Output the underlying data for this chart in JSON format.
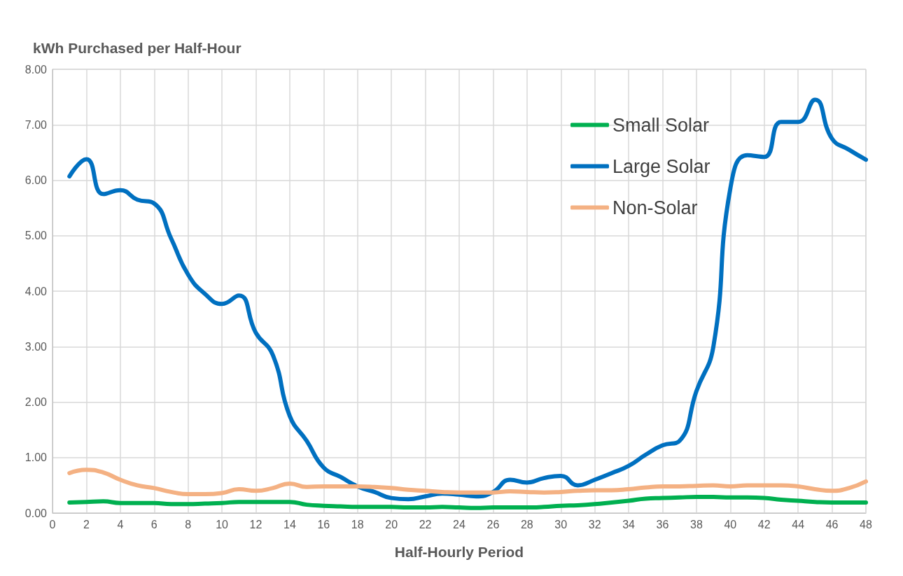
{
  "chart_data": {
    "type": "line",
    "xlabel": "Half-Hourly Period",
    "ylabel": "kWh Purchased per Half-Hour",
    "x": [
      1,
      2,
      3,
      4,
      5,
      6,
      7,
      8,
      9,
      10,
      11,
      12,
      13,
      14,
      15,
      16,
      17,
      18,
      19,
      20,
      21,
      22,
      23,
      24,
      25,
      26,
      27,
      28,
      29,
      30,
      31,
      32,
      33,
      34,
      35,
      36,
      37,
      38,
      39,
      40,
      41,
      42,
      43,
      44,
      45,
      46,
      47,
      48
    ],
    "series": [
      {
        "name": "Small Solar",
        "color": "#00b050",
        "values": [
          0.19,
          0.2,
          0.21,
          0.18,
          0.18,
          0.18,
          0.16,
          0.16,
          0.17,
          0.18,
          0.2,
          0.2,
          0.2,
          0.2,
          0.15,
          0.13,
          0.12,
          0.11,
          0.11,
          0.11,
          0.1,
          0.1,
          0.11,
          0.1,
          0.09,
          0.1,
          0.1,
          0.1,
          0.11,
          0.13,
          0.14,
          0.16,
          0.19,
          0.22,
          0.26,
          0.27,
          0.28,
          0.29,
          0.29,
          0.28,
          0.28,
          0.27,
          0.24,
          0.22,
          0.2,
          0.19,
          0.19,
          0.19
        ]
      },
      {
        "name": "Large Solar",
        "color": "#0070c0",
        "values": [
          6.07,
          6.38,
          5.75,
          5.82,
          5.65,
          5.58,
          4.95,
          4.3,
          3.95,
          3.77,
          3.92,
          3.25,
          2.85,
          1.75,
          1.3,
          0.82,
          0.65,
          0.48,
          0.38,
          0.27,
          0.25,
          0.3,
          0.35,
          0.33,
          0.3,
          0.38,
          0.6,
          0.55,
          0.63,
          0.67,
          0.5,
          0.6,
          0.72,
          0.85,
          1.05,
          1.22,
          1.3,
          2.2,
          3.0,
          5.85,
          6.45,
          6.42,
          7.05,
          7.05,
          7.45,
          6.75,
          6.55,
          6.37
        ]
      },
      {
        "name": "Non-Solar",
        "color": "#f4b183",
        "values": [
          0.72,
          0.78,
          0.73,
          0.6,
          0.5,
          0.45,
          0.38,
          0.34,
          0.34,
          0.36,
          0.43,
          0.4,
          0.45,
          0.53,
          0.47,
          0.48,
          0.48,
          0.48,
          0.47,
          0.45,
          0.42,
          0.4,
          0.38,
          0.37,
          0.37,
          0.37,
          0.39,
          0.38,
          0.37,
          0.38,
          0.4,
          0.41,
          0.41,
          0.43,
          0.46,
          0.48,
          0.48,
          0.49,
          0.5,
          0.48,
          0.5,
          0.5,
          0.5,
          0.48,
          0.43,
          0.4,
          0.45,
          0.57
        ]
      }
    ],
    "xlim": [
      0,
      48
    ],
    "xticks": [
      0,
      2,
      4,
      6,
      8,
      10,
      12,
      14,
      16,
      18,
      20,
      22,
      24,
      26,
      28,
      30,
      32,
      34,
      36,
      38,
      40,
      42,
      44,
      46,
      48
    ],
    "ylim": [
      0,
      8
    ],
    "yticks": [
      {
        "value": 0,
        "label": "0.00"
      },
      {
        "value": 1,
        "label": "1.00"
      },
      {
        "value": 2,
        "label": "2.00"
      },
      {
        "value": 3,
        "label": "3.00"
      },
      {
        "value": 4,
        "label": "4.00"
      },
      {
        "value": 5,
        "label": "5.00"
      },
      {
        "value": 6,
        "label": "6.00"
      },
      {
        "value": 7,
        "label": "7.00"
      },
      {
        "value": 8,
        "label": "8.00"
      }
    ],
    "grid": true,
    "legend": "top right",
    "marker": "none",
    "line_style": "solid"
  }
}
